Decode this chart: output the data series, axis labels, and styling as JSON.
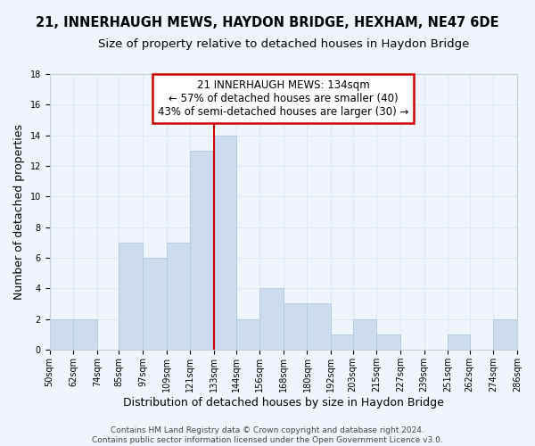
{
  "title": "21, INNERHAUGH MEWS, HAYDON BRIDGE, HEXHAM, NE47 6DE",
  "subtitle": "Size of property relative to detached houses in Haydon Bridge",
  "xlabel": "Distribution of detached houses by size in Haydon Bridge",
  "ylabel": "Number of detached properties",
  "bin_edges": [
    50,
    62,
    74,
    85,
    97,
    109,
    121,
    133,
    144,
    156,
    168,
    180,
    192,
    203,
    215,
    227,
    239,
    251,
    262,
    274,
    286
  ],
  "bar_heights": [
    2,
    2,
    0,
    7,
    6,
    7,
    13,
    14,
    2,
    4,
    3,
    3,
    1,
    2,
    1,
    0,
    0,
    1,
    0,
    2
  ],
  "bar_color": "#ccdcee",
  "bar_edgecolor": "#b0c8e0",
  "grid_color": "#dde8f0",
  "reference_line_x": 133,
  "reference_line_color": "#cc0000",
  "annotation_box_text": "21 INNERHAUGH MEWS: 134sqm\n← 57% of detached houses are smaller (40)\n43% of semi-detached houses are larger (30) →",
  "annotation_box_facecolor": "#ffffff",
  "annotation_box_edgecolor": "#cc0000",
  "ylim": [
    0,
    18
  ],
  "yticks": [
    0,
    2,
    4,
    6,
    8,
    10,
    12,
    14,
    16,
    18
  ],
  "tick_labels": [
    "50sqm",
    "62sqm",
    "74sqm",
    "85sqm",
    "97sqm",
    "109sqm",
    "121sqm",
    "133sqm",
    "144sqm",
    "156sqm",
    "168sqm",
    "180sqm",
    "192sqm",
    "203sqm",
    "215sqm",
    "227sqm",
    "239sqm",
    "251sqm",
    "262sqm",
    "274sqm",
    "286sqm"
  ],
  "footer_line1": "Contains HM Land Registry data © Crown copyright and database right 2024.",
  "footer_line2": "Contains public sector information licensed under the Open Government Licence v3.0.",
  "background_color": "#f0f5fc",
  "title_fontsize": 10.5,
  "subtitle_fontsize": 9.5,
  "axis_label_fontsize": 9,
  "tick_fontsize": 7,
  "footer_fontsize": 6.5,
  "annotation_fontsize": 8.5
}
